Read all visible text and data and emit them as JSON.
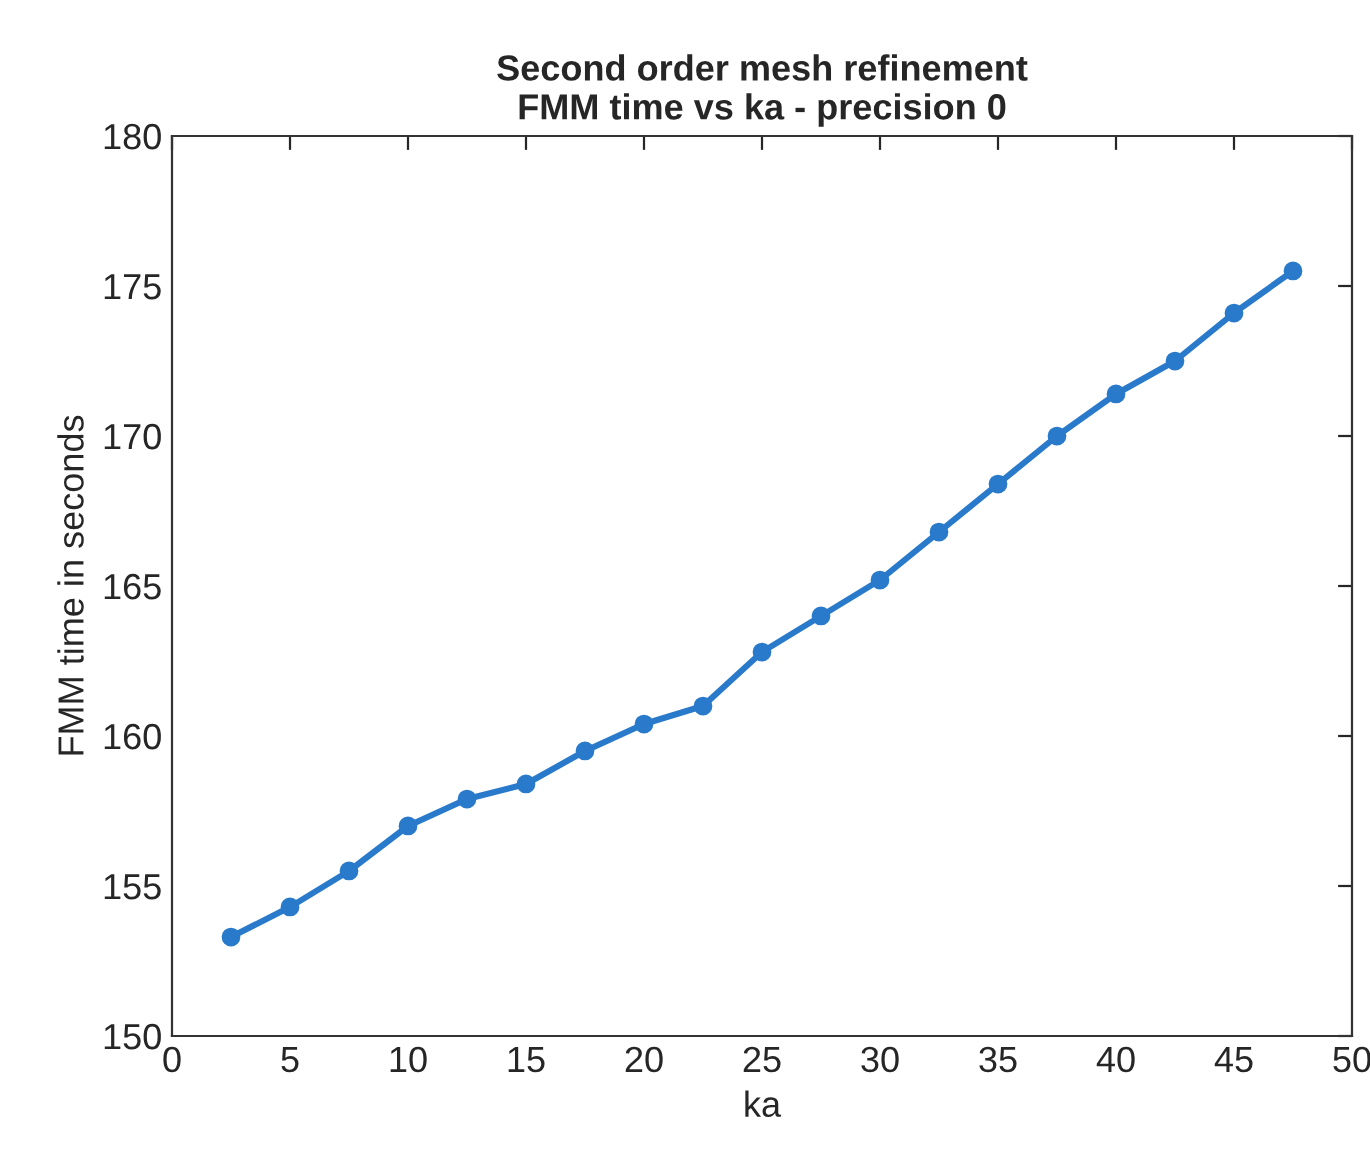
{
  "chart_data": {
    "type": "line",
    "title": "Second order mesh refinement\nFMM time vs ka - precision 0",
    "xlabel": "ka",
    "ylabel": "FMM time in seconds",
    "x": [
      2.5,
      5,
      7.5,
      10,
      12.5,
      15,
      17.5,
      20,
      22.5,
      25,
      27.5,
      30,
      32.5,
      35,
      37.5,
      40,
      42.5,
      45,
      47.5
    ],
    "series": [
      {
        "color": "#2a7acb",
        "values": [
          153.3,
          154.3,
          155.5,
          157.0,
          157.9,
          158.4,
          159.5,
          160.4,
          161.0,
          162.8,
          164.0,
          165.2,
          166.8,
          168.4,
          170.0,
          171.4,
          172.5,
          174.1,
          175.5
        ]
      }
    ],
    "xlim": [
      0,
      50
    ],
    "xticks": [
      0,
      5,
      10,
      15,
      20,
      25,
      30,
      35,
      40,
      45,
      50
    ],
    "ylim": [
      150,
      180
    ],
    "yticks": [
      150,
      155,
      160,
      165,
      170,
      175,
      180
    ],
    "grid": false,
    "legend": false,
    "marker": "circle",
    "line_style": "solid"
  }
}
